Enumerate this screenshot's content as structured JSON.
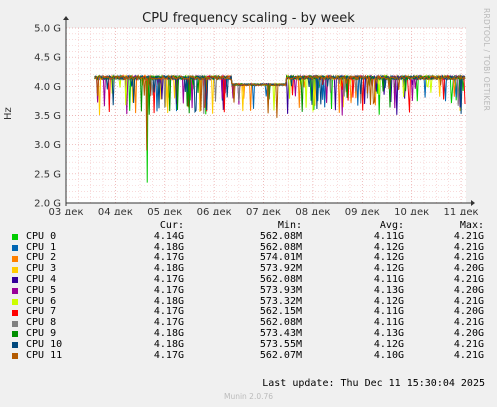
{
  "chart_data": {
    "type": "line",
    "title": "CPU frequency scaling - by week",
    "ylabel": "Hz",
    "yticks": [
      "2.0 G",
      "2.5 G",
      "3.0 G",
      "3.5 G",
      "4.0 G",
      "4.5 G",
      "5.0 G"
    ],
    "ylim": [
      2.0,
      5.0
    ],
    "xticks": [
      "03 дек",
      "04 дек",
      "05 дек",
      "06 дек",
      "07 дек",
      "08 дек",
      "09 дек",
      "10 дек",
      "11 дек"
    ],
    "x_range_days": [
      0,
      8.1
    ],
    "data_start_day": 0.58,
    "grid": true,
    "base_ghz": 4.15,
    "series": [
      {
        "name": "CPU 0",
        "color": "#00cc00",
        "cur": "4.14G",
        "min": "562.08M",
        "avg": "4.11G",
        "max": "4.21G"
      },
      {
        "name": "CPU 1",
        "color": "#0066b3",
        "cur": "4.18G",
        "min": "562.08M",
        "avg": "4.12G",
        "max": "4.21G"
      },
      {
        "name": "CPU 2",
        "color": "#ff8000",
        "cur": "4.17G",
        "min": "574.01M",
        "avg": "4.12G",
        "max": "4.21G"
      },
      {
        "name": "CPU 3",
        "color": "#ffcc00",
        "cur": "4.18G",
        "min": "573.92M",
        "avg": "4.12G",
        "max": "4.20G"
      },
      {
        "name": "CPU 4",
        "color": "#330099",
        "cur": "4.17G",
        "min": "562.08M",
        "avg": "4.11G",
        "max": "4.21G"
      },
      {
        "name": "CPU 5",
        "color": "#990099",
        "cur": "4.17G",
        "min": "573.93M",
        "avg": "4.13G",
        "max": "4.20G"
      },
      {
        "name": "CPU 6",
        "color": "#ccff00",
        "cur": "4.18G",
        "min": "573.32M",
        "avg": "4.12G",
        "max": "4.21G"
      },
      {
        "name": "CPU 7",
        "color": "#ff0000",
        "cur": "4.17G",
        "min": "562.15M",
        "avg": "4.11G",
        "max": "4.20G"
      },
      {
        "name": "CPU 8",
        "color": "#808080",
        "cur": "4.17G",
        "min": "562.08M",
        "avg": "4.11G",
        "max": "4.21G"
      },
      {
        "name": "CPU 9",
        "color": "#008f00",
        "cur": "4.18G",
        "min": "573.43M",
        "avg": "4.13G",
        "max": "4.20G"
      },
      {
        "name": "CPU 10",
        "color": "#00487d",
        "cur": "4.18G",
        "min": "573.55M",
        "avg": "4.12G",
        "max": "4.21G"
      },
      {
        "name": "CPU 11",
        "color": "#b35a00",
        "cur": "4.17G",
        "min": "562.07M",
        "avg": "4.10G",
        "max": "4.21G"
      }
    ]
  },
  "legend": {
    "headers": {
      "cur": "Cur:",
      "min": "Min:",
      "avg": "Avg:",
      "max": "Max:"
    }
  },
  "footer": {
    "last_update": "Last update: Thu Dec 11 15:30:04 2025",
    "generator": "Munin 2.0.76"
  },
  "watermark": "RRDTOOL / TOBI OETIKER"
}
